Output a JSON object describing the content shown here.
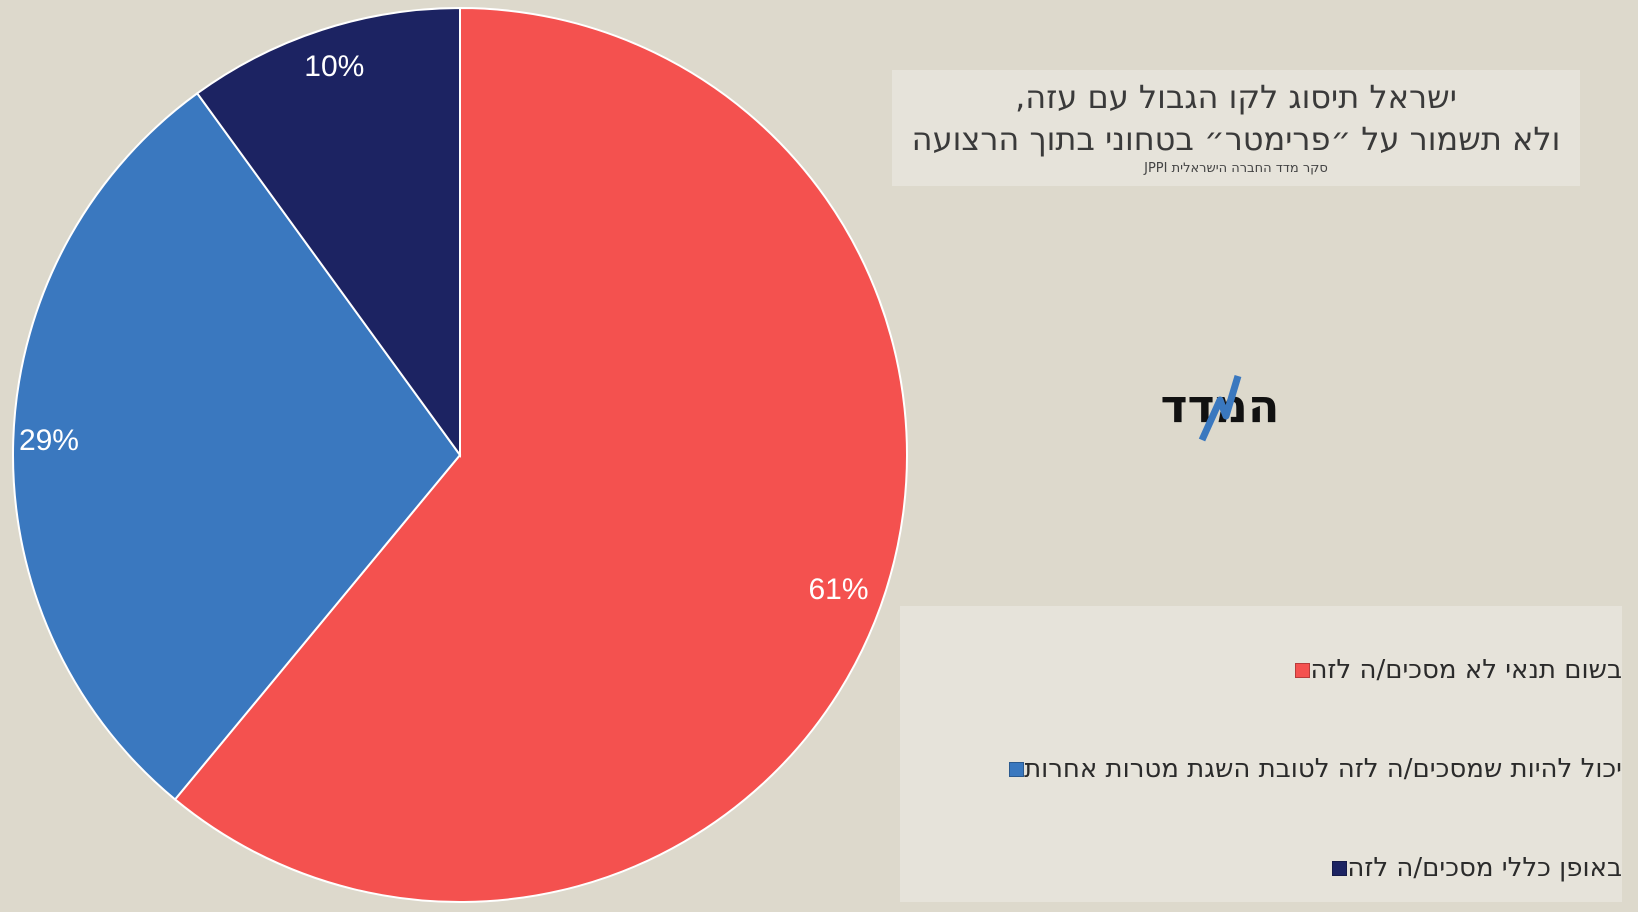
{
  "chart_data": {
    "type": "pie",
    "title": "ישראל תיסוג לקו הגבול עם עזה, ולא תשמור על ״פרימטר״ בטחוני בתוך הרצועה",
    "title_lines": [
      "ישראל תיסוג לקו הגבול עם עזה,",
      "ולא תשמור על ״פרימטר״ בטחוני בתוך הרצועה"
    ],
    "subtitle": "סקר מדד החברה הישראלית JPPI",
    "categories": [
      "בשום תנאי לא מסכים/ה לזה",
      "יכול להיות שמסכים/ה לזה לטובת השגת מטרות אחרות",
      "באופן כללי מסכים/ה לזה"
    ],
    "values": [
      61,
      29,
      10
    ],
    "data_labels": [
      "61%",
      "29%",
      "10%"
    ],
    "colors": [
      "#f4514f",
      "#3a78bf",
      "#1c2362"
    ],
    "start": "12 o'clock",
    "direction": "clockwise",
    "legend_position": "bottom-right"
  },
  "logo": {
    "name": "המדד-logo",
    "text": "המדד",
    "accent_color": "#3a78bf"
  }
}
